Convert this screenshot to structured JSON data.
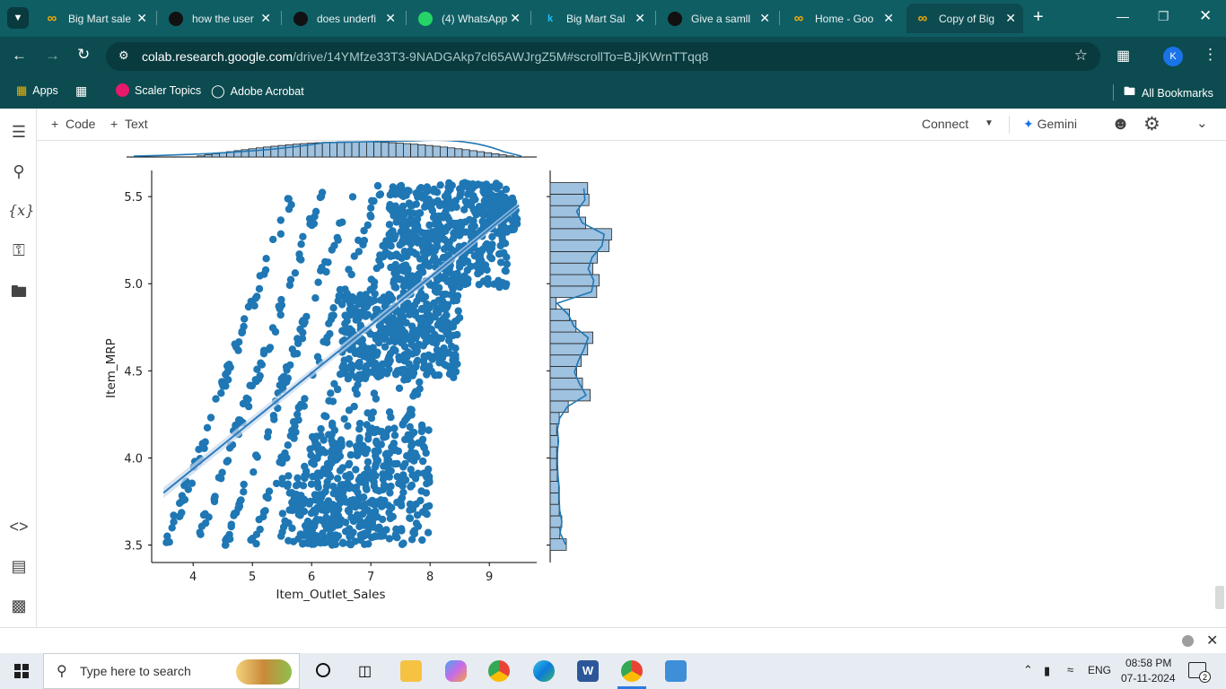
{
  "browser": {
    "tabs": [
      {
        "title": "Big Mart sale",
        "icon": "colab-icon"
      },
      {
        "title": "how the user",
        "icon": "openai-icon"
      },
      {
        "title": "does underfi",
        "icon": "openai-icon"
      },
      {
        "title": "(4) WhatsApp",
        "icon": "whatsapp-icon"
      },
      {
        "title": "Big Mart Sal",
        "icon": "kaggle-icon"
      },
      {
        "title": "Give a samll",
        "icon": "openai-icon"
      },
      {
        "title": "Home - Goo",
        "icon": "colab-icon"
      },
      {
        "title": "Copy of Big",
        "icon": "colab-icon"
      }
    ],
    "url_host": "colab.research.google.com",
    "url_path": "/drive/14YMfze33T3-9NADGAkp7cl65AWJrgZ5M#scrollTo=BJjKWrnTTqq8",
    "profile_initial": "K",
    "bookmarks": [
      {
        "label": "Apps"
      },
      {
        "label": "Scaler Topics"
      },
      {
        "label": "Adobe Acrobat"
      }
    ],
    "all_bookmarks": "All Bookmarks"
  },
  "colab": {
    "add_code": "Code",
    "add_text": "Text",
    "connect": "Connect",
    "gemini": "Gemini"
  },
  "chart_data": {
    "type": "scatter",
    "xlabel": "Item_Outlet_Sales",
    "ylabel": "Item_MRP",
    "xlim": [
      3.3,
      9.8
    ],
    "ylim": [
      3.4,
      5.65
    ],
    "x_ticks": [
      "4",
      "5",
      "6",
      "7",
      "8",
      "9"
    ],
    "y_ticks": [
      "3.5",
      "4.0",
      "4.5",
      "5.0",
      "5.5"
    ],
    "regression_line": {
      "x": [
        3.5,
        9.5
      ],
      "y": [
        3.8,
        5.45
      ]
    },
    "marginal_y_hist_counts": [
      0.25,
      0.15,
      0.18,
      0.14,
      0.13,
      0.13,
      0.11,
      0.1,
      0.1,
      0.12,
      0.1,
      0.14,
      0.28,
      0.62,
      0.5,
      0.41,
      0.48,
      0.58,
      0.66,
      0.4,
      0.3,
      0.09,
      0.72,
      0.76,
      0.66,
      0.73,
      0.91,
      0.95,
      0.55,
      0.45,
      0.6,
      0.58
    ],
    "color": "#1f77b4"
  },
  "taskbar": {
    "search_placeholder": "Type here to search",
    "time": "08:58 PM",
    "date": "07-11-2024",
    "lang": "ENG",
    "notif_count": "2"
  }
}
